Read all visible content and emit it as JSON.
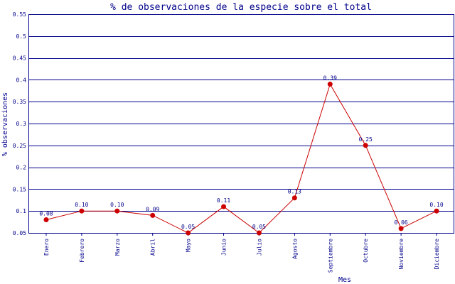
{
  "chart_data": {
    "type": "line",
    "title": "% de observaciones de la especie sobre el total",
    "xlabel": "Mes",
    "ylabel": "% observaciones",
    "categories": [
      "Enero",
      "Febrero",
      "Marzo",
      "Abril",
      "Mayo",
      "Junio",
      "Julio",
      "Agosto",
      "Septiembre",
      "Octubre",
      "Noviembre",
      "Diciembre"
    ],
    "values": [
      0.08,
      0.1,
      0.1,
      0.09,
      0.05,
      0.11,
      0.05,
      0.13,
      0.39,
      0.25,
      0.06,
      0.1
    ],
    "data_labels": [
      "0.08",
      "0.10",
      "0.10",
      "0.09",
      "0.05",
      "0.11",
      "0.05",
      "0.13",
      "0.39",
      "0.25",
      "0.06",
      "0.10"
    ],
    "ylim": [
      0.05,
      0.55
    ],
    "yticks": [
      0.05,
      0.1,
      0.15,
      0.2,
      0.25,
      0.3,
      0.35,
      0.4,
      0.45,
      0.5,
      0.55
    ],
    "ytick_labels": [
      "0.05",
      "0.1",
      "0.15",
      "0.2",
      "0.25",
      "0.3",
      "0.35",
      "0.4",
      "0.45",
      "0.5",
      "0.55"
    ],
    "grid": true,
    "colors": {
      "line": "#cc0000",
      "marker": "#cc0000",
      "grid": "#00008b",
      "text": "#00008b"
    }
  }
}
